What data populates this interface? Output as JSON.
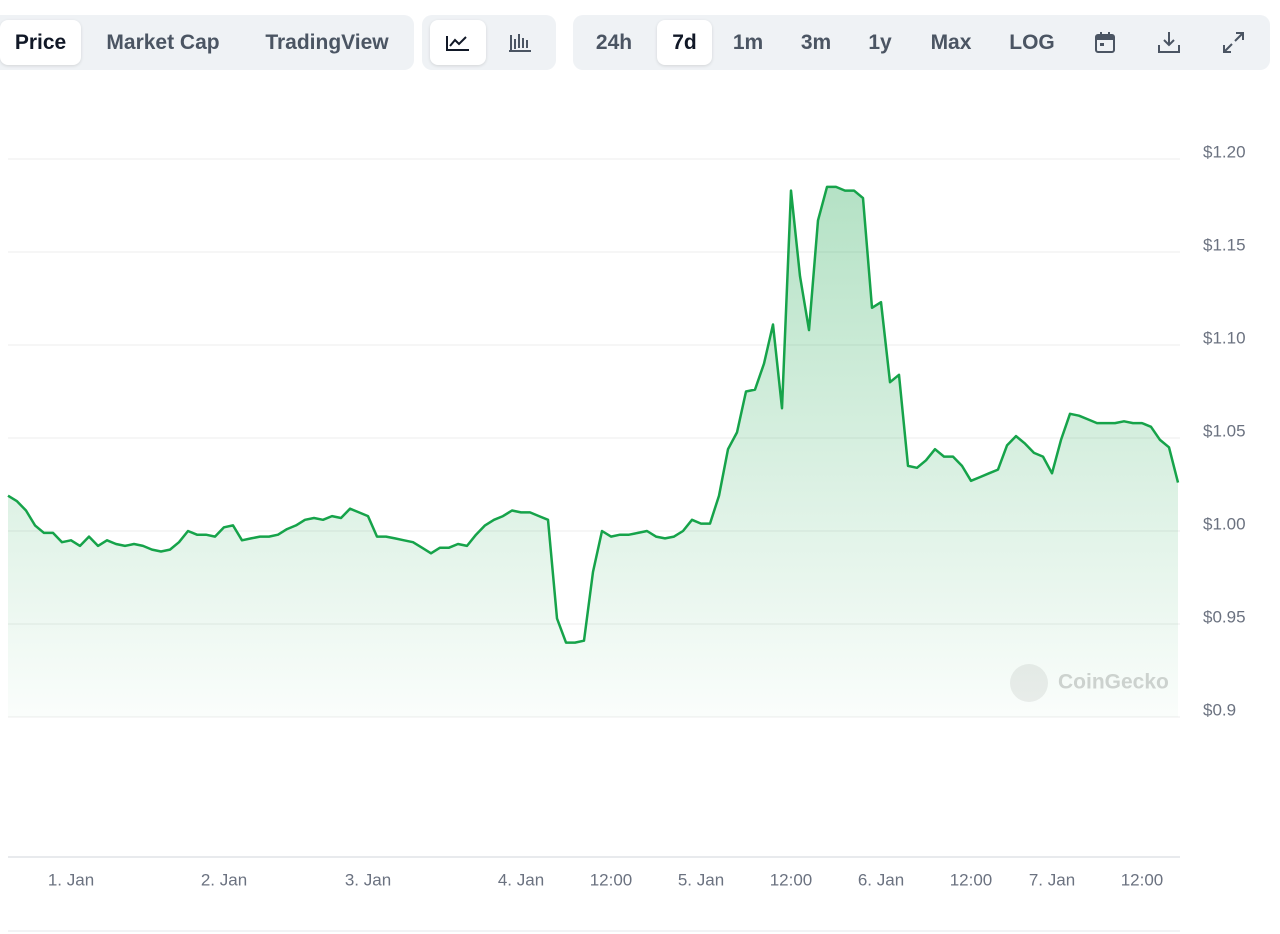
{
  "toolbar": {
    "views": [
      "Price",
      "Market Cap",
      "TradingView"
    ],
    "ranges": [
      "24h",
      "7d",
      "1m",
      "3m",
      "1y",
      "Max",
      "LOG"
    ]
  },
  "watermark": "CoinGecko",
  "chart_data": {
    "type": "line",
    "color": "#16a34a",
    "grid": true,
    "categories": [
      null,
      null,
      null,
      null,
      null,
      null,
      null,
      "1. Jan",
      null,
      null,
      null,
      null,
      null,
      null,
      null,
      null,
      null,
      null,
      null,
      null,
      null,
      null,
      null,
      null,
      "2. Jan",
      null,
      null,
      null,
      null,
      null,
      null,
      null,
      null,
      null,
      null,
      null,
      null,
      null,
      null,
      null,
      "3. Jan",
      null,
      null,
      null,
      null,
      null,
      null,
      null,
      null,
      null,
      null,
      null,
      null,
      null,
      null,
      null,
      null,
      "4. Jan",
      null,
      null,
      null,
      null,
      null,
      null,
      null,
      null,
      null,
      "12:00",
      null,
      null,
      null,
      null,
      null,
      null,
      null,
      null,
      null,
      "5. Jan",
      null,
      null,
      null,
      null,
      null,
      null,
      null,
      null,
      null,
      "12:00",
      null,
      null,
      null,
      null,
      null,
      null,
      null,
      null,
      null,
      "6. Jan",
      null,
      null,
      null,
      null,
      null,
      null,
      null,
      null,
      null,
      "12:00",
      null,
      null,
      null,
      null,
      null,
      null,
      null,
      null,
      "7. Jan",
      null,
      null,
      null,
      null,
      null,
      null,
      null,
      null,
      null,
      "12:00",
      null,
      null,
      null,
      null
    ],
    "values": [
      1.019,
      1.016,
      1.011,
      1.003,
      0.999,
      0.999,
      0.994,
      0.995,
      0.992,
      0.997,
      0.992,
      0.995,
      0.993,
      0.992,
      0.993,
      0.992,
      0.99,
      0.989,
      0.99,
      0.994,
      1.0,
      0.998,
      0.998,
      0.997,
      1.002,
      1.003,
      0.995,
      0.996,
      0.997,
      0.997,
      0.998,
      1.001,
      1.003,
      1.006,
      1.007,
      1.006,
      1.008,
      1.007,
      1.012,
      1.01,
      1.008,
      0.997,
      0.997,
      0.996,
      0.995,
      0.994,
      0.991,
      0.988,
      0.991,
      0.991,
      0.993,
      0.992,
      0.998,
      1.003,
      1.006,
      1.008,
      1.011,
      1.01,
      1.01,
      1.008,
      1.006,
      0.953,
      0.94,
      0.94,
      0.941,
      0.978,
      1.0,
      0.997,
      0.998,
      0.998,
      0.999,
      1.0,
      0.997,
      0.996,
      0.997,
      1.0,
      1.006,
      1.004,
      1.004,
      1.019,
      1.044,
      1.053,
      1.075,
      1.076,
      1.09,
      1.111,
      1.066,
      1.183,
      1.137,
      1.108,
      1.167,
      1.185,
      1.185,
      1.183,
      1.183,
      1.179,
      1.12,
      1.123,
      1.08,
      1.084,
      1.035,
      1.034,
      1.038,
      1.044,
      1.04,
      1.04,
      1.035,
      1.027,
      1.029,
      1.031,
      1.033,
      1.046,
      1.051,
      1.047,
      1.042,
      1.04,
      1.031,
      1.049,
      1.063,
      1.062,
      1.06,
      1.058,
      1.058,
      1.058,
      1.059,
      1.058,
      1.058,
      1.056,
      1.049,
      1.045,
      1.026
    ],
    "ylim": [
      0.9,
      1.2
    ],
    "yticks": [
      {
        "value": 0.9,
        "label": "$0.9"
      },
      {
        "value": 0.95,
        "label": "$0.95"
      },
      {
        "value": 1.0,
        "label": "$1.00"
      },
      {
        "value": 1.05,
        "label": "$1.05"
      },
      {
        "value": 1.1,
        "label": "$1.10"
      },
      {
        "value": 1.15,
        "label": "$1.15"
      },
      {
        "value": 1.2,
        "label": "$1.20"
      }
    ]
  }
}
